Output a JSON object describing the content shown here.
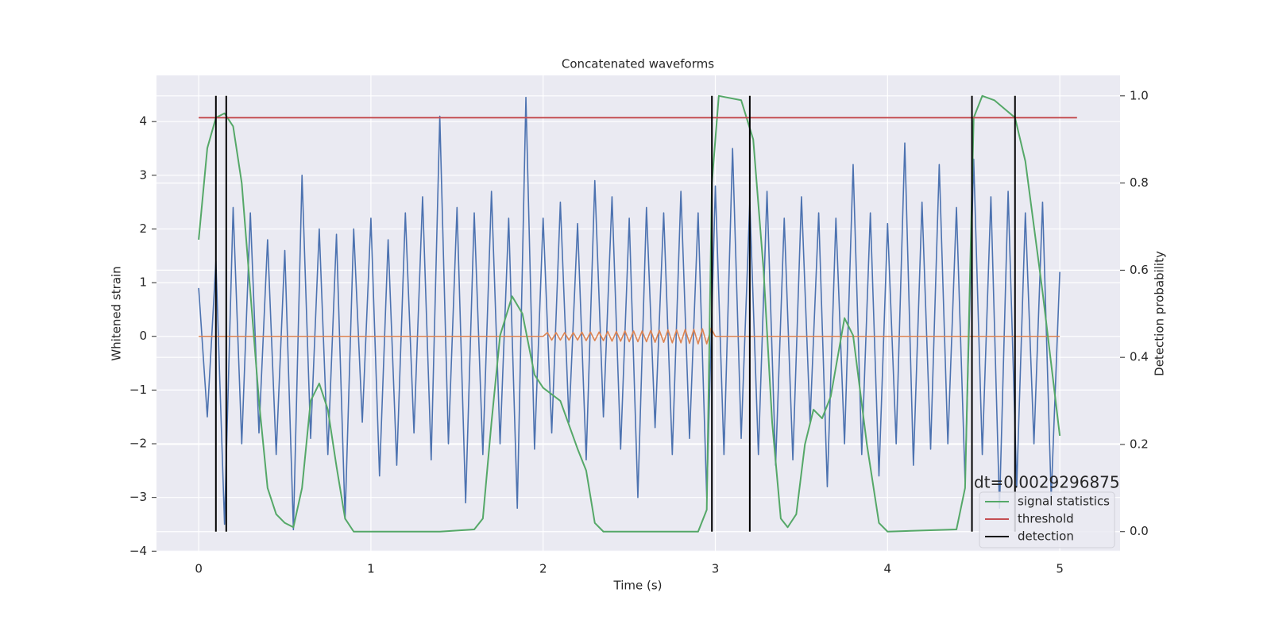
{
  "chart_data": {
    "type": "line",
    "title": "Concatenated waveforms",
    "xlabel": "Time (s)",
    "ylabel": "Whitened strain",
    "y2label": "Detection probability",
    "annotation": "dt=0.0029296875",
    "grid": true,
    "legend": "lower right",
    "xlim": [
      -0.245,
      5.35
    ],
    "ylim": [
      -4.01,
      4.86
    ],
    "y2lim": [
      -0.046,
      1.047
    ],
    "xticks": [
      0,
      1,
      2,
      3,
      4,
      5
    ],
    "yticks": [
      {
        "value": -4,
        "label": "−4"
      },
      {
        "value": -3,
        "label": "−3"
      },
      {
        "value": -2,
        "label": "−2"
      },
      {
        "value": -1,
        "label": "−1"
      },
      0,
      1,
      2,
      3,
      4
    ],
    "y2ticks": [
      {
        "value": 0,
        "label": "0.0"
      },
      0.2,
      0.4,
      0.6,
      0.8,
      {
        "value": 1,
        "label": "1.0"
      }
    ],
    "series": [
      {
        "color": "#4c72b0",
        "axis": "y",
        "x": [
          0,
          0.05,
          0.1,
          0.15,
          0.2,
          0.25,
          0.3,
          0.35,
          0.4,
          0.45,
          0.5,
          0.55,
          0.6,
          0.65,
          0.7,
          0.75,
          0.8,
          0.85,
          0.9,
          0.95,
          1,
          1.05,
          1.1,
          1.15,
          1.2,
          1.25,
          1.3,
          1.35,
          1.4,
          1.45,
          1.5,
          1.55,
          1.6,
          1.65,
          1.7,
          1.75,
          1.8,
          1.85,
          1.9,
          1.95,
          2,
          2.05,
          2.1,
          2.15,
          2.2,
          2.25,
          2.3,
          2.35,
          2.4,
          2.45,
          2.5,
          2.55,
          2.6,
          2.65,
          2.7,
          2.75,
          2.8,
          2.85,
          2.9,
          2.95,
          3,
          3.05,
          3.1,
          3.15,
          3.2,
          3.25,
          3.3,
          3.35,
          3.4,
          3.45,
          3.5,
          3.55,
          3.6,
          3.65,
          3.7,
          3.75,
          3.8,
          3.85,
          3.9,
          3.95,
          4,
          4.05,
          4.1,
          4.15,
          4.2,
          4.25,
          4.3,
          4.35,
          4.4,
          4.45,
          4.5,
          4.55,
          4.6,
          4.65,
          4.7,
          4.75,
          4.8,
          4.85,
          4.9,
          4.95,
          5
        ],
        "values": [
          0.9,
          -1.5,
          1.4,
          -3.5,
          2.4,
          -2.0,
          2.3,
          -1.8,
          1.8,
          -2.2,
          1.6,
          -3.6,
          3.0,
          -1.9,
          2.0,
          -2.2,
          1.9,
          -3.4,
          2.0,
          -1.6,
          2.2,
          -2.6,
          1.8,
          -2.4,
          2.3,
          -1.8,
          2.6,
          -2.3,
          4.1,
          -2.0,
          2.4,
          -3.1,
          2.3,
          -2.2,
          2.7,
          -2.0,
          2.2,
          -3.2,
          4.45,
          -2.1,
          2.2,
          -1.8,
          2.5,
          -1.6,
          2.1,
          -2.3,
          2.9,
          -1.5,
          2.6,
          -2.1,
          2.2,
          -3.0,
          2.4,
          -1.7,
          2.3,
          -2.2,
          2.7,
          -1.9,
          2.3,
          -3.0,
          2.8,
          -2.2,
          3.5,
          -1.9,
          2.5,
          -2.2,
          2.7,
          -2.4,
          2.2,
          -2.3,
          2.6,
          -1.6,
          2.3,
          -2.8,
          2.2,
          -2.0,
          3.2,
          -2.2,
          2.3,
          -2.6,
          2.1,
          -2.0,
          3.6,
          -2.4,
          2.5,
          -2.1,
          3.2,
          -2.0,
          2.4,
          -2.7,
          3.3,
          -2.2,
          2.6,
          -3.2,
          2.7,
          -2.8,
          2.3,
          -2.0,
          2.5,
          -3.0,
          1.2
        ]
      },
      {
        "color": "#dd8452",
        "axis": "y",
        "x": [
          0,
          2,
          2.025,
          2.05,
          2.075,
          2.1,
          2.125,
          2.15,
          2.175,
          2.2,
          2.225,
          2.25,
          2.275,
          2.3,
          2.325,
          2.35,
          2.375,
          2.4,
          2.425,
          2.45,
          2.475,
          2.5,
          2.525,
          2.55,
          2.575,
          2.6,
          2.625,
          2.65,
          2.675,
          2.7,
          2.725,
          2.75,
          2.775,
          2.8,
          2.825,
          2.85,
          2.875,
          2.9,
          2.925,
          2.95,
          2.975,
          3,
          5
        ],
        "values": [
          0,
          0,
          0.07,
          -0.07,
          0.07,
          -0.07,
          0.07,
          -0.07,
          0.07,
          -0.07,
          0.08,
          -0.08,
          0.08,
          -0.08,
          0.08,
          -0.08,
          0.09,
          -0.09,
          0.09,
          -0.09,
          0.1,
          -0.1,
          0.1,
          -0.1,
          0.1,
          -0.1,
          0.11,
          -0.11,
          0.11,
          -0.11,
          0.12,
          -0.12,
          0.12,
          -0.12,
          0.13,
          -0.13,
          0.13,
          -0.14,
          0.14,
          -0.14,
          0.15,
          0,
          0
        ]
      },
      {
        "name": "signal statistics",
        "color": "#55a868",
        "axis": "y2",
        "x": [
          0,
          0.05,
          0.1,
          0.15,
          0.2,
          0.25,
          0.3,
          0.35,
          0.4,
          0.45,
          0.5,
          0.55,
          0.6,
          0.65,
          0.7,
          0.75,
          0.8,
          0.85,
          0.9,
          1,
          1.2,
          1.4,
          1.6,
          1.65,
          1.7,
          1.75,
          1.82,
          1.88,
          1.95,
          2,
          2.1,
          2.2,
          2.25,
          2.3,
          2.35,
          2.6,
          2.9,
          2.95,
          2.98,
          3.02,
          3.15,
          3.22,
          3.28,
          3.33,
          3.38,
          3.42,
          3.47,
          3.52,
          3.57,
          3.62,
          3.67,
          3.75,
          3.8,
          3.88,
          3.95,
          4,
          4.4,
          4.45,
          4.5,
          4.55,
          4.62,
          4.74,
          4.8,
          4.9,
          5
        ],
        "values": [
          0.67,
          0.88,
          0.95,
          0.96,
          0.93,
          0.8,
          0.55,
          0.3,
          0.1,
          0.04,
          0.02,
          0.01,
          0.1,
          0.3,
          0.34,
          0.28,
          0.15,
          0.03,
          0,
          0,
          0,
          0,
          0.005,
          0.03,
          0.25,
          0.45,
          0.54,
          0.5,
          0.36,
          0.33,
          0.3,
          0.19,
          0.14,
          0.02,
          0,
          0,
          0,
          0.05,
          0.8,
          1,
          0.99,
          0.9,
          0.6,
          0.25,
          0.03,
          0.01,
          0.04,
          0.2,
          0.28,
          0.26,
          0.31,
          0.49,
          0.45,
          0.2,
          0.02,
          0,
          0.005,
          0.1,
          0.95,
          1,
          0.99,
          0.95,
          0.85,
          0.55,
          0.22
        ]
      },
      {
        "name": "threshold",
        "color": "#c44e52",
        "axis": "y2",
        "x": [
          0,
          5.1
        ],
        "values": [
          0.95,
          0.95
        ]
      }
    ],
    "detection": {
      "name": "detection",
      "color": "#000000",
      "x": [
        0.1,
        0.16,
        2.98,
        3.2,
        4.49,
        4.74
      ],
      "ymin": 0,
      "ymax": 1
    }
  }
}
